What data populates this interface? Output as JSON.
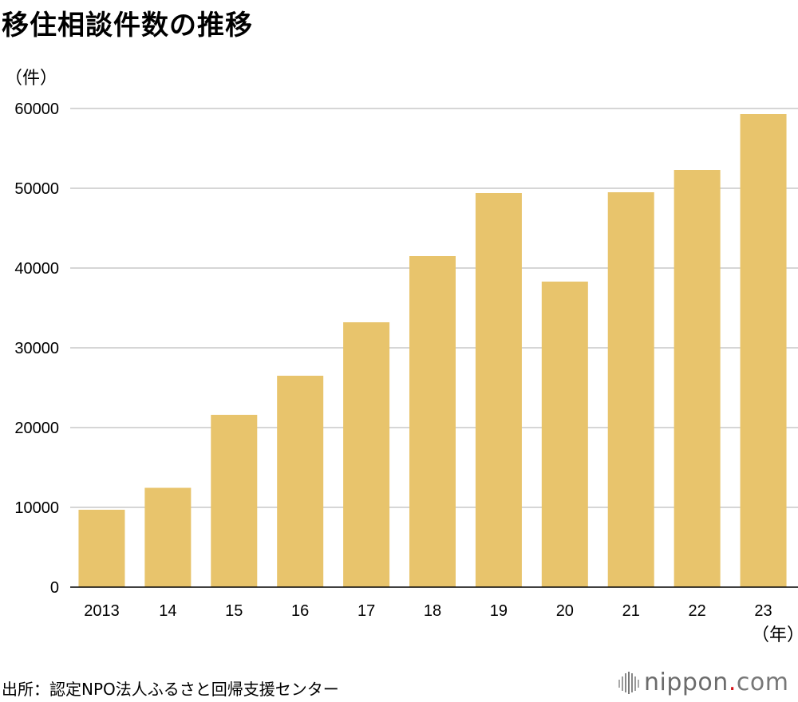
{
  "header": {
    "title": "移住相談件数の推移",
    "y_unit": "（件）",
    "x_unit": "（年）"
  },
  "footer": {
    "source": "出所：認定NPO法人ふるさと回帰支援センター",
    "logo_name": "nippon",
    "logo_dot": ".",
    "logo_tail": "com"
  },
  "colors": {
    "bar": "#E8C46C",
    "grid": "#C8C8C8",
    "axis": "#000000",
    "logo_accent": "#D7141A"
  },
  "chart_data": {
    "type": "bar",
    "title": "移住相談件数の推移",
    "xlabel": "（年）",
    "ylabel": "（件）",
    "categories": [
      "2013",
      "14",
      "15",
      "16",
      "17",
      "18",
      "19",
      "20",
      "21",
      "22",
      "23"
    ],
    "values": [
      9700,
      12450,
      21600,
      26500,
      33200,
      41500,
      49400,
      38300,
      49500,
      52300,
      59300
    ],
    "ylim": [
      0,
      60000
    ],
    "yticks": [
      0,
      10000,
      20000,
      30000,
      40000,
      50000,
      60000
    ],
    "grid": true,
    "legend": "none"
  }
}
